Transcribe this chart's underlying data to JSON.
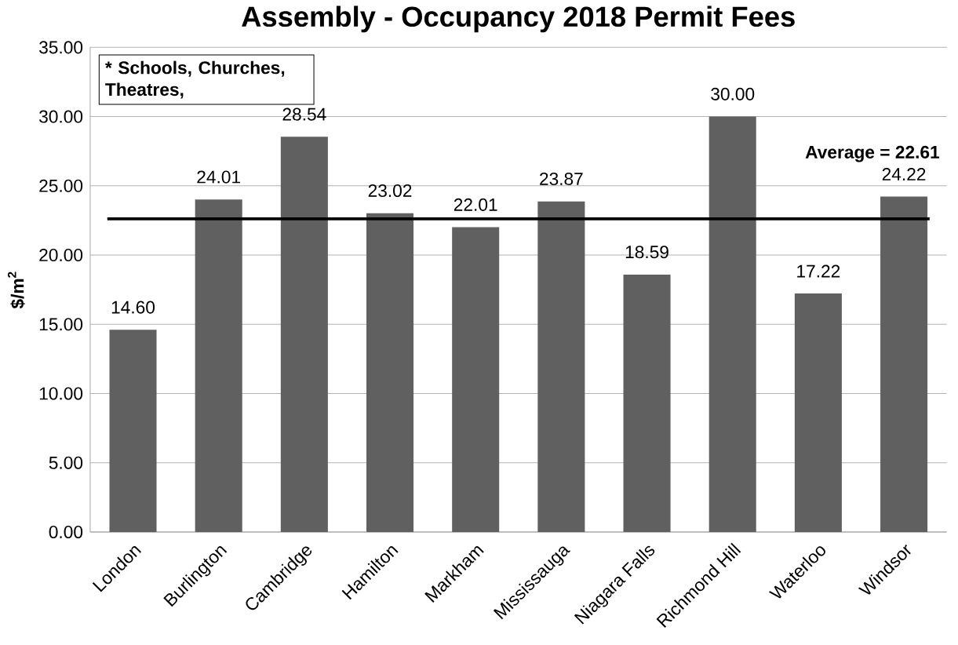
{
  "chart_data": {
    "type": "bar",
    "title": "Assembly - Occupancy 2018 Permit Fees",
    "ylabel": "$/m$^{2}$",
    "categories": [
      "London",
      "Burlington",
      "Cambridge",
      "Hamilton",
      "Markham",
      "Mississauga",
      "Niagara Falls",
      "Richmond Hill",
      "Waterloo",
      "Windsor"
    ],
    "values": [
      14.6,
      24.01,
      28.54,
      23.02,
      22.01,
      23.87,
      18.59,
      30.0,
      17.22,
      24.22
    ],
    "value_labels": [
      "14.60",
      "24.01",
      "28.54",
      "23.02",
      "22.01",
      "23.87",
      "18.59",
      "30.00",
      "17.22",
      "24.22"
    ],
    "color": "#606060",
    "ylim": [
      0,
      35
    ],
    "yticks": [
      {
        "value": 0,
        "label": "0.00"
      },
      {
        "value": 5,
        "label": "5.00"
      },
      {
        "value": 10,
        "label": "10.00"
      },
      {
        "value": 15,
        "label": "15.00"
      },
      {
        "value": 20,
        "label": "20.00"
      },
      {
        "value": 25,
        "label": "25.00"
      },
      {
        "value": 30,
        "label": "30.00"
      },
      {
        "value": 35,
        "label": "35.00"
      }
    ],
    "grid": "y",
    "ref_lines": [
      {
        "axis": "y",
        "value": 22.61,
        "label": "Average = 22.61",
        "color": "#000000"
      }
    ],
    "annotations": [
      "* Schools, Churches, Theatres,"
    ]
  }
}
